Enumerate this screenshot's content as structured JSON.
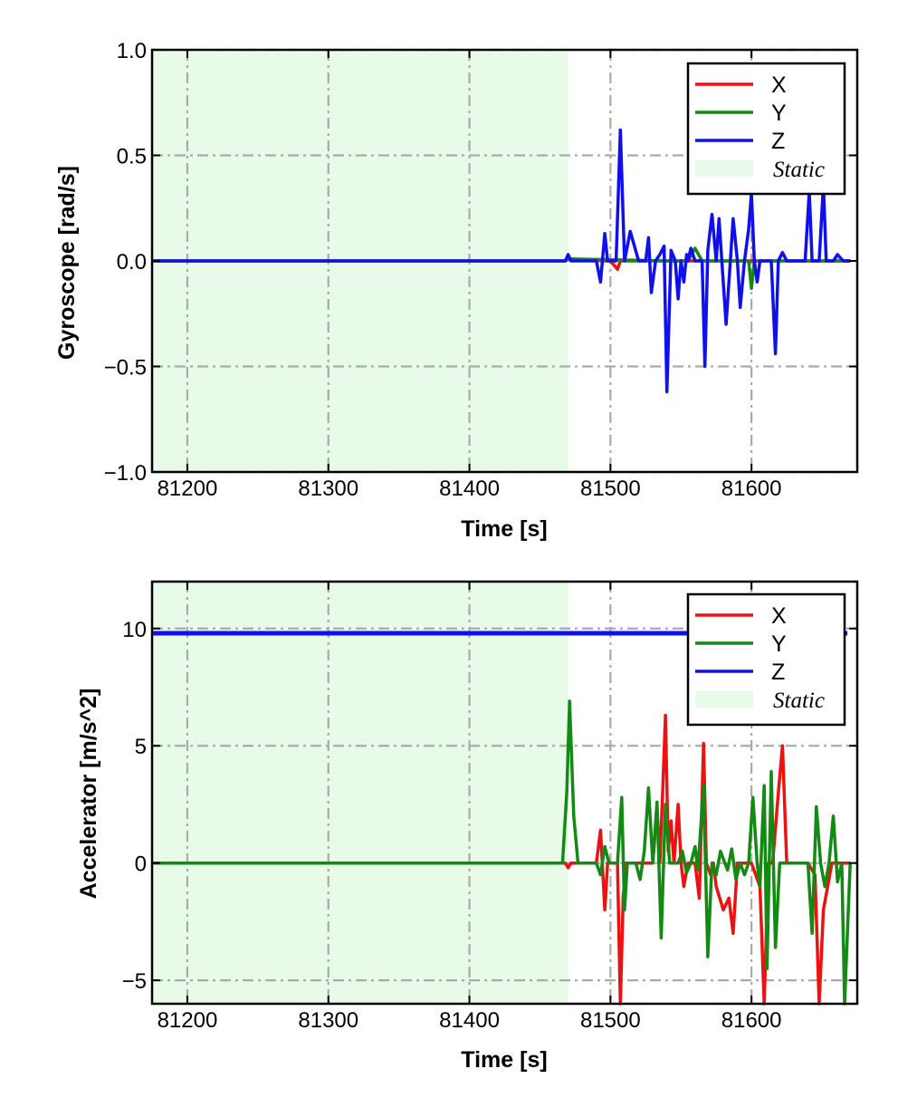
{
  "chart_data": [
    {
      "type": "line",
      "xlabel": "Time [s]",
      "ylabel": "Gyroscope [rad/s]",
      "xlim": [
        81175,
        81675
      ],
      "ylim": [
        -1.0,
        1.0
      ],
      "xticks": [
        81200,
        81300,
        81400,
        81500,
        81600
      ],
      "xtick_labels": [
        "81200",
        "81300",
        "81400",
        "81500",
        "81600"
      ],
      "yticks": [
        1.0,
        0.5,
        0.0,
        -0.5,
        -1.0
      ],
      "ytick_labels": [
        "1.0",
        "0.5",
        "0.0",
        "−0.5",
        "−1.0"
      ],
      "grid": true,
      "legend_position": "top-right",
      "static_region": {
        "label": "Static",
        "x": [
          81175,
          81470
        ],
        "color": "#e8fbe8"
      },
      "series": [
        {
          "name": "X",
          "color": "#ee1111",
          "x": [
            81175,
            81468,
            81470,
            81496,
            81500,
            81505,
            81507,
            81510,
            81560,
            81600,
            81650,
            81670
          ],
          "values": [
            0.0,
            0.0,
            0.01,
            0.0,
            0.0,
            -0.04,
            0.0,
            0.0,
            0.0,
            0.0,
            0.0,
            0.0
          ]
        },
        {
          "name": "Y",
          "color": "#138a13",
          "x": [
            81175,
            81468,
            81470,
            81540,
            81555,
            81560,
            81565,
            81598,
            81600,
            81602,
            81640,
            81670
          ],
          "values": [
            0.0,
            0.0,
            0.01,
            0.0,
            0.0,
            0.06,
            0.0,
            0.0,
            -0.13,
            0.0,
            0.0,
            0.0
          ]
        },
        {
          "name": "Z",
          "color": "#1010ee",
          "x": [
            81175,
            81468,
            81470,
            81472,
            81490,
            81493,
            81496,
            81498,
            81500,
            81504,
            81507,
            81510,
            81514,
            81520,
            81525,
            81527,
            81529,
            81532,
            81535,
            81538,
            81540,
            81543,
            81546,
            81548,
            81550,
            81552,
            81554,
            81555,
            81557,
            81560,
            81562,
            81565,
            81567,
            81569,
            81572,
            81575,
            81577,
            81579,
            81582,
            81585,
            81587,
            81590,
            81592,
            81595,
            81598,
            81600,
            81602,
            81604,
            81606,
            81610,
            81614,
            81617,
            81619,
            81622,
            81625,
            81630,
            81638,
            81641,
            81643,
            81645,
            81648,
            81651,
            81653,
            81655,
            81658,
            81661,
            81665,
            81670
          ],
          "values": [
            0.0,
            0.0,
            0.03,
            0.0,
            0.0,
            -0.1,
            0.13,
            0.0,
            0.0,
            0.0,
            0.62,
            0.0,
            0.14,
            0.0,
            0.0,
            0.11,
            -0.15,
            0.0,
            0.03,
            0.07,
            -0.62,
            0.05,
            0.0,
            -0.18,
            0.0,
            -0.1,
            0.03,
            0.0,
            0.06,
            0.0,
            0.0,
            0.0,
            -0.5,
            0.05,
            0.22,
            0.0,
            0.2,
            0.0,
            -0.3,
            0.0,
            0.2,
            0.0,
            -0.22,
            0.0,
            0.15,
            0.32,
            0.0,
            -0.1,
            0.0,
            0.0,
            0.0,
            -0.44,
            0.0,
            0.04,
            0.0,
            0.0,
            0.0,
            0.33,
            0.0,
            0.0,
            0.0,
            0.36,
            0.0,
            0.0,
            0.0,
            0.03,
            0.0,
            0.0
          ]
        }
      ]
    },
    {
      "type": "line",
      "xlabel": "Time [s]",
      "ylabel": "Accelerator [m/s^2]",
      "xlim": [
        81175,
        81675
      ],
      "ylim": [
        -6.0,
        12.0
      ],
      "xticks": [
        81200,
        81300,
        81400,
        81500,
        81600
      ],
      "xtick_labels": [
        "81200",
        "81300",
        "81400",
        "81500",
        "81600"
      ],
      "yticks": [
        10,
        5,
        0,
        -5
      ],
      "ytick_labels": [
        "10",
        "5",
        "0",
        "−5"
      ],
      "grid": true,
      "legend_position": "top-right",
      "static_region": {
        "label": "Static",
        "x": [
          81175,
          81470
        ],
        "color": "#e8fbe8"
      },
      "series": [
        {
          "name": "X",
          "color": "#ee1111",
          "x": [
            81175,
            81468,
            81470,
            81472,
            81490,
            81493,
            81496,
            81498,
            81500,
            81505,
            81507,
            81509,
            81511,
            81515,
            81520,
            81525,
            81530,
            81533,
            81535,
            81537,
            81539,
            81541,
            81543,
            81545,
            81548,
            81550,
            81552,
            81555,
            81558,
            81560,
            81563,
            81566,
            81568,
            81571,
            81573,
            81575,
            81580,
            81584,
            81587,
            81590,
            81595,
            81600,
            81603,
            81606,
            81609,
            81612,
            81615,
            81619,
            81622,
            81625,
            81630,
            81640,
            81645,
            81648,
            81651,
            81654,
            81657,
            81660,
            81670
          ],
          "values": [
            0.0,
            0.0,
            -0.2,
            0.0,
            0.0,
            1.4,
            -2.0,
            0.0,
            0.0,
            0.0,
            -6.0,
            -1.5,
            0.0,
            0.0,
            0.0,
            0.0,
            0.0,
            2.3,
            0.0,
            3.0,
            6.3,
            0.5,
            1.8,
            0.0,
            2.5,
            0.0,
            -1.0,
            0.0,
            0.0,
            0.0,
            -1.5,
            5.1,
            0.0,
            -0.5,
            0.0,
            -1.0,
            -2.0,
            -1.5,
            -3.0,
            0.0,
            0.0,
            0.0,
            -0.5,
            -1.0,
            -6.0,
            0.0,
            0.0,
            3.0,
            5.0,
            0.0,
            0.0,
            0.0,
            -0.5,
            -6.0,
            -2.0,
            -1.0,
            0.0,
            0.0,
            0.0
          ]
        },
        {
          "name": "Y",
          "color": "#138a13",
          "x": [
            81175,
            81466,
            81469,
            81471,
            81474,
            81477,
            81490,
            81493,
            81496,
            81499,
            81505,
            81508,
            81510,
            81512,
            81515,
            81518,
            81521,
            81524,
            81527,
            81530,
            81533,
            81536,
            81539,
            81542,
            81545,
            81548,
            81551,
            81554,
            81557,
            81560,
            81562,
            81566,
            81569,
            81572,
            81575,
            81578,
            81583,
            81586,
            81589,
            81592,
            81595,
            81598,
            81601,
            81604,
            81606,
            81609,
            81611,
            81614,
            81617,
            81620,
            81623,
            81626,
            81630,
            81640,
            81643,
            81646,
            81649,
            81652,
            81655,
            81658,
            81661,
            81664,
            81666,
            81670
          ],
          "values": [
            0.0,
            0.0,
            3.0,
            6.9,
            2.0,
            0.0,
            0.0,
            -0.5,
            0.7,
            0.0,
            0.0,
            2.8,
            -2.0,
            0.0,
            0.0,
            0.0,
            -0.7,
            0.5,
            3.2,
            0.0,
            2.6,
            -3.2,
            2.5,
            0.0,
            0.0,
            0.0,
            0.5,
            -0.4,
            0.0,
            0.7,
            -0.3,
            3.3,
            -4.0,
            0.0,
            -0.5,
            0.5,
            -0.3,
            0.6,
            -0.7,
            0.0,
            -0.5,
            0.0,
            2.8,
            0.0,
            -1.0,
            3.3,
            -4.5,
            3.9,
            -3.6,
            0.0,
            0.0,
            0.0,
            0.0,
            0.0,
            -3.0,
            2.4,
            0.0,
            -1.0,
            0.0,
            2.0,
            -0.8,
            0.0,
            -6.0,
            0.0
          ]
        },
        {
          "name": "Z",
          "color": "#1010ee",
          "x": [
            81175,
            81668
          ],
          "values": [
            9.8,
            9.8
          ]
        }
      ]
    }
  ]
}
